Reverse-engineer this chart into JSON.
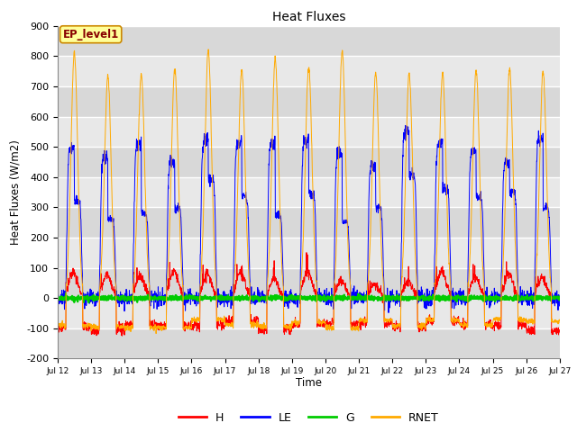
{
  "title": "Heat Fluxes",
  "ylabel": "Heat Fluxes (W/m2)",
  "xlabel": "Time",
  "annotation": "EP_level1",
  "ylim": [
    -200,
    900
  ],
  "yticks": [
    -200,
    -100,
    0,
    100,
    200,
    300,
    400,
    500,
    600,
    700,
    800,
    900
  ],
  "colors": {
    "H": "#ff0000",
    "LE": "#0000ff",
    "G": "#00cc00",
    "RNET": "#ffaa00"
  },
  "bg_color": "#e8e8e8",
  "grid_color": "#ffffff",
  "n_days": 15,
  "points_per_day": 144,
  "start_day": 12,
  "annotation_bg": "#ffff99",
  "annotation_border": "#cc8800",
  "annotation_text_color": "#880000"
}
